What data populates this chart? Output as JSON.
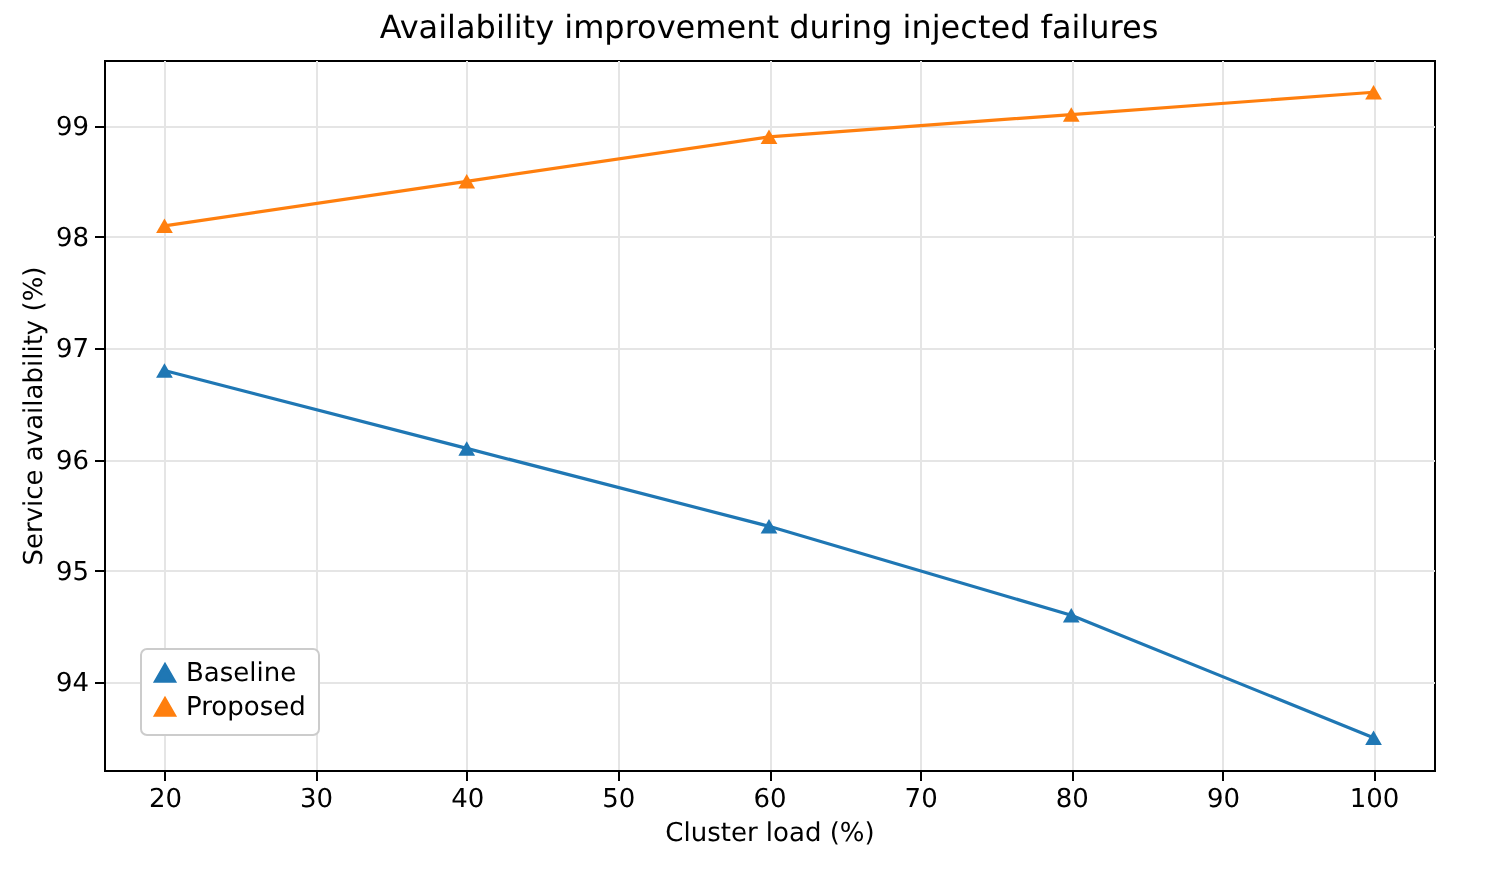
{
  "chart_data": {
    "type": "line",
    "title": "Availability improvement during injected failures",
    "xlabel": "Cluster load (%)",
    "ylabel": "Service availability (%)",
    "x": [
      20,
      40,
      60,
      80,
      100
    ],
    "series": [
      {
        "name": "Baseline",
        "color": "#1f77b4",
        "values": [
          96.8,
          96.1,
          95.4,
          94.6,
          93.5
        ]
      },
      {
        "name": "Proposed",
        "color": "#ff7f0e",
        "values": [
          98.1,
          98.5,
          98.9,
          99.1,
          99.3
        ]
      }
    ],
    "xlim": [
      16,
      104
    ],
    "xticks": [
      20,
      30,
      40,
      50,
      60,
      70,
      80,
      90,
      100
    ],
    "ylim": [
      93.21,
      99.59
    ],
    "yticks": [
      94,
      95,
      96,
      97,
      98,
      99
    ],
    "grid": true,
    "legend": "bottom left",
    "marker": "triangle",
    "line_style": "solid"
  }
}
